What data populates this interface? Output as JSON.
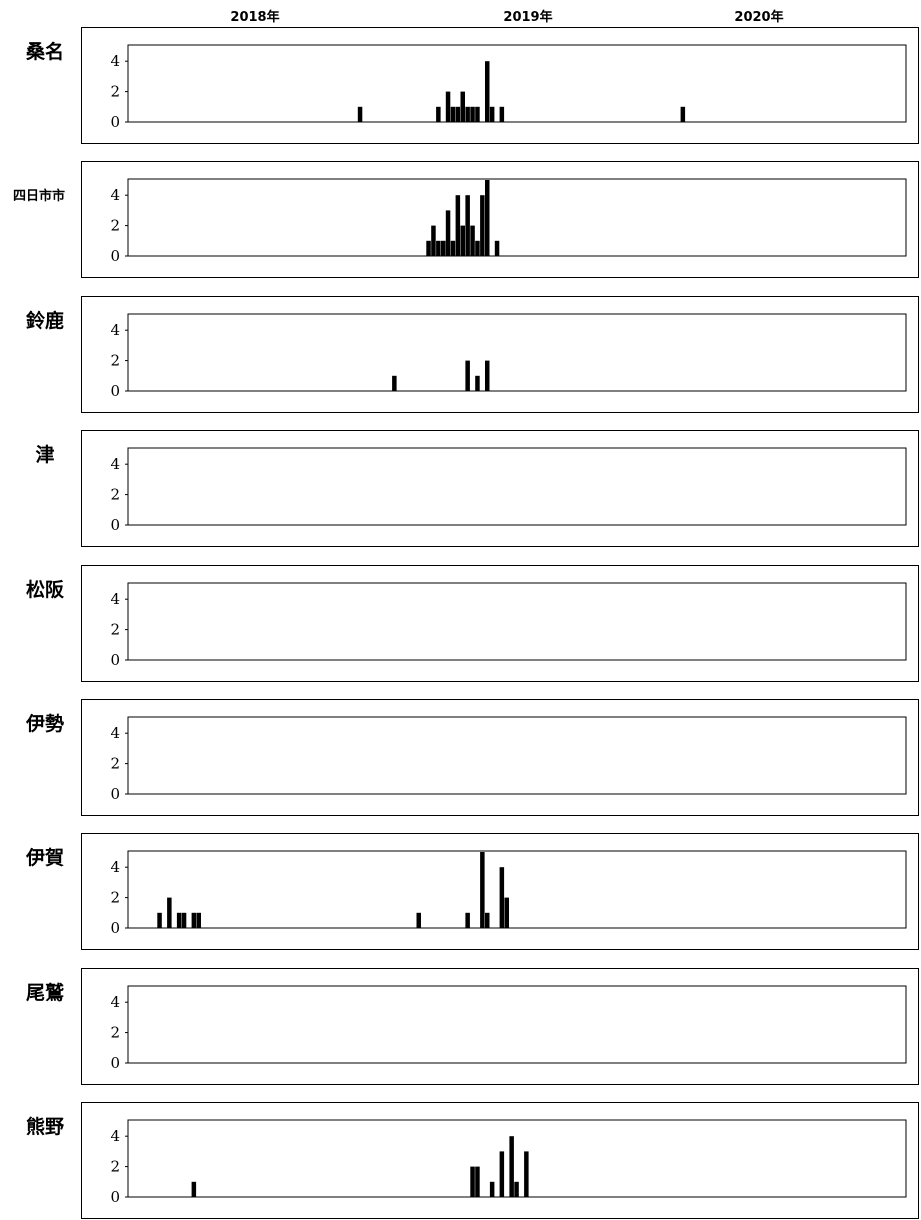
{
  "chart_data": {
    "type": "bar",
    "years": [
      "2018年",
      "2019年",
      "2020年"
    ],
    "x": {
      "unit": "week",
      "start": "2017-W40",
      "ticks": [
        "2018年",
        "2019年",
        "2020年"
      ]
    },
    "ylim": [
      0,
      5
    ],
    "yticks": [
      "0",
      "2",
      "4"
    ],
    "regions": [
      {
        "name": "桑名",
        "bars": [
          {
            "week": 47,
            "value": 1
          },
          {
            "week": 63,
            "value": 1
          },
          {
            "week": 65,
            "value": 2
          },
          {
            "week": 66,
            "value": 1
          },
          {
            "week": 67,
            "value": 1
          },
          {
            "week": 68,
            "value": 2
          },
          {
            "week": 69,
            "value": 1
          },
          {
            "week": 70,
            "value": 1
          },
          {
            "week": 71,
            "value": 1
          },
          {
            "week": 73,
            "value": 4
          },
          {
            "week": 74,
            "value": 1
          },
          {
            "week": 76,
            "value": 1
          },
          {
            "week": 113,
            "value": 1
          }
        ]
      },
      {
        "name": "四日市市",
        "bars": [
          {
            "week": 61,
            "value": 1
          },
          {
            "week": 62,
            "value": 2
          },
          {
            "week": 63,
            "value": 1
          },
          {
            "week": 64,
            "value": 1
          },
          {
            "week": 65,
            "value": 3
          },
          {
            "week": 66,
            "value": 1
          },
          {
            "week": 67,
            "value": 4
          },
          {
            "week": 68,
            "value": 2
          },
          {
            "week": 69,
            "value": 4
          },
          {
            "week": 70,
            "value": 2
          },
          {
            "week": 71,
            "value": 1
          },
          {
            "week": 72,
            "value": 4
          },
          {
            "week": 73,
            "value": 5
          },
          {
            "week": 75,
            "value": 1
          }
        ]
      },
      {
        "name": "鈴鹿",
        "bars": [
          {
            "week": 54,
            "value": 1
          },
          {
            "week": 69,
            "value": 2
          },
          {
            "week": 71,
            "value": 1
          },
          {
            "week": 73,
            "value": 2
          }
        ]
      },
      {
        "name": "津",
        "bars": []
      },
      {
        "name": "松阪",
        "bars": []
      },
      {
        "name": "伊勢",
        "bars": []
      },
      {
        "name": "伊賀",
        "bars": [
          {
            "week": 6,
            "value": 1
          },
          {
            "week": 8,
            "value": 2
          },
          {
            "week": 10,
            "value": 1
          },
          {
            "week": 11,
            "value": 1
          },
          {
            "week": 13,
            "value": 1
          },
          {
            "week": 14,
            "value": 1
          },
          {
            "week": 59,
            "value": 1
          },
          {
            "week": 69,
            "value": 1
          },
          {
            "week": 72,
            "value": 5
          },
          {
            "week": 73,
            "value": 1
          },
          {
            "week": 76,
            "value": 4
          },
          {
            "week": 77,
            "value": 2
          }
        ]
      },
      {
        "name": "尾鷲",
        "bars": []
      },
      {
        "name": "熊野",
        "bars": [
          {
            "week": 13,
            "value": 1
          },
          {
            "week": 70,
            "value": 2
          },
          {
            "week": 71,
            "value": 2
          },
          {
            "week": 74,
            "value": 1
          },
          {
            "week": 76,
            "value": 3
          },
          {
            "week": 78,
            "value": 4
          },
          {
            "week": 79,
            "value": 1
          },
          {
            "week": 81,
            "value": 3
          }
        ]
      }
    ]
  }
}
